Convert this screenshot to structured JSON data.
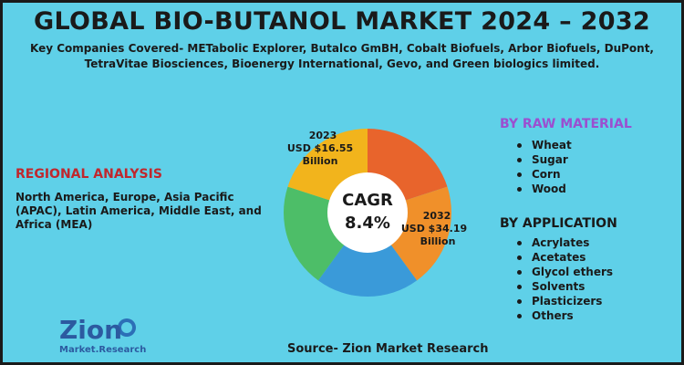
{
  "title": "GLOBAL BIO-BUTANOL MARKET 2024 – 2032",
  "subtitle": "Key Companies Covered- METabolic Explorer, Butalco GmBH, Cobalt Biofuels, Arbor Biofuels, DuPont, TetraVitae Biosciences, Bioenergy International, Gevo, and Green biologics limited.",
  "regional": {
    "heading": "REGIONAL ANALYSIS",
    "text": "North America, Europe, Asia Pacific (APAC), Latin America, Middle East, and Africa (MEA)"
  },
  "raw_material": {
    "heading": "BY RAW MATERIAL",
    "items": [
      "Wheat",
      "Sugar",
      "Corn",
      "Wood"
    ]
  },
  "application": {
    "heading": "BY APPLICATION",
    "items": [
      "Acrylates",
      "Acetates",
      "Glycol ethers",
      "Solvents",
      "Plasticizers",
      "Others"
    ]
  },
  "source": "Source- Zion Market Research",
  "logo": {
    "line1": "Zion",
    "line2": "Market.Research"
  },
  "chart_data": {
    "type": "pie",
    "title": "",
    "center_label": {
      "line1": "CAGR",
      "line2": "8.4%"
    },
    "annotations": [
      {
        "year": "2023",
        "value": "USD $16.55",
        "unit": "Billion"
      },
      {
        "year": "2032",
        "value": "USD $34.19",
        "unit": "Billion"
      }
    ],
    "slices": [
      {
        "value": 20,
        "color": "#e8642c"
      },
      {
        "value": 20,
        "color": "#f0902a"
      },
      {
        "value": 20,
        "color": "#3a9ad9"
      },
      {
        "value": 20,
        "color": "#4dbe68"
      },
      {
        "value": 20,
        "color": "#f2b41c"
      }
    ]
  },
  "colors": {
    "background": "#5fd0e8",
    "regional_heading": "#c0272d",
    "raw_heading": "#9b4fd0"
  }
}
